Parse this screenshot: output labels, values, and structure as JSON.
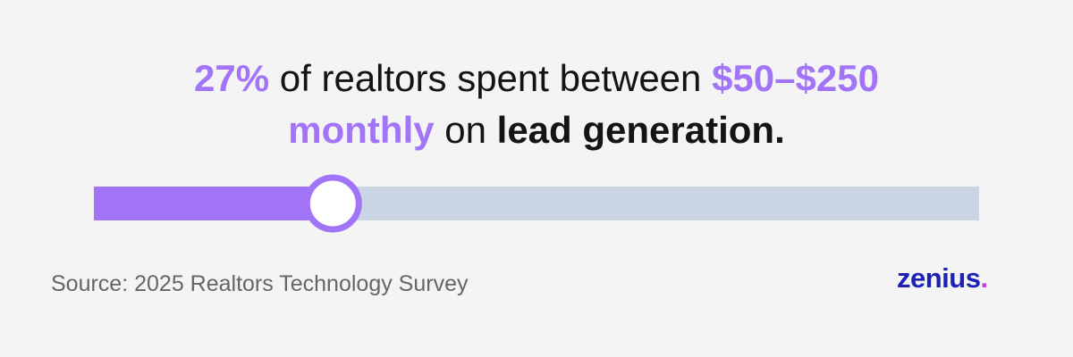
{
  "headline": {
    "stat": {
      "value": 27,
      "label": "27%"
    },
    "text1": "of realtors spent between",
    "range": "$50–$250",
    "period": "monthly",
    "text2": "on",
    "topic": "lead generation."
  },
  "progress": {
    "xlim": [
      0,
      100
    ],
    "fill_color": "#a274f7",
    "track_color": "#c9d5e2"
  },
  "source": "Source: 2025 Realtors Technology Survey",
  "logo": {
    "name": "zenius",
    "dot": "."
  }
}
